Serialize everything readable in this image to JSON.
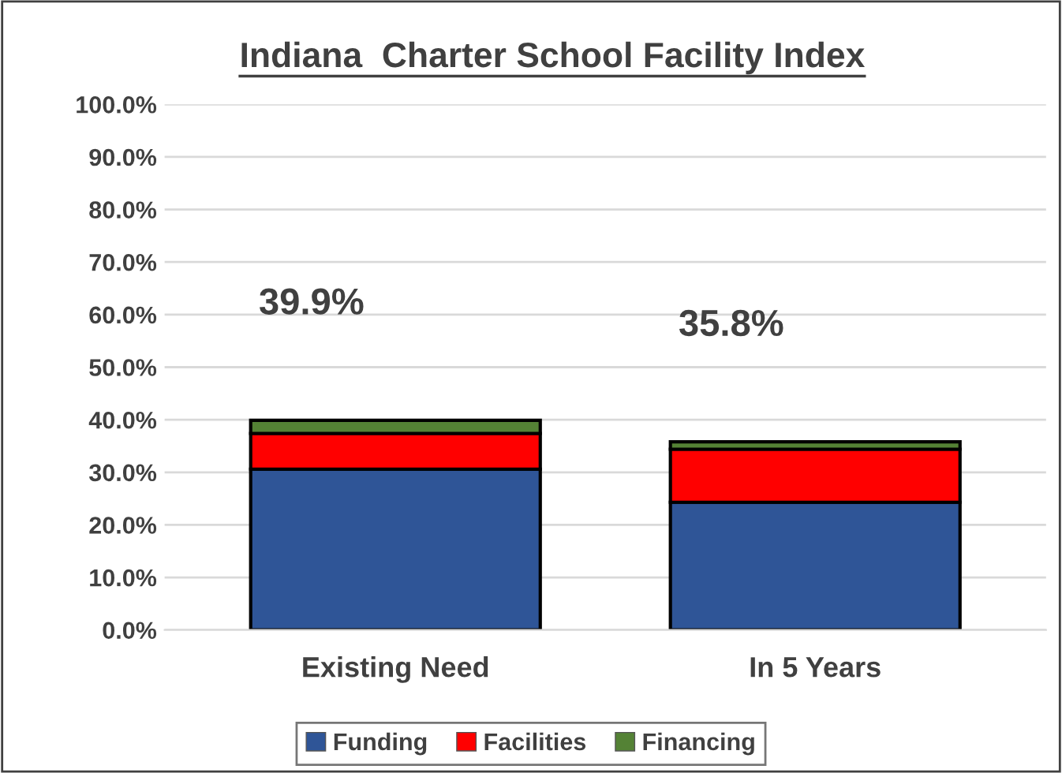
{
  "chart_data": {
    "type": "bar",
    "title": "Indiana  Charter School Facility Index",
    "categories": [
      "Existing Need",
      "In 5 Years"
    ],
    "stacked": true,
    "series": [
      {
        "name": "Funding",
        "color": "#2f5597",
        "values": [
          30.6,
          24.3
        ]
      },
      {
        "name": "Facilities",
        "color": "#ff0000",
        "values": [
          6.8,
          10.1
        ]
      },
      {
        "name": "Financing",
        "color": "#548235",
        "values": [
          2.5,
          1.4
        ]
      }
    ],
    "totals": [
      "39.9%",
      "35.8%"
    ],
    "ylim": [
      0,
      100
    ],
    "yticks": [
      {
        "value": 0,
        "label": "0.0%"
      },
      {
        "value": 10,
        "label": "10.0%"
      },
      {
        "value": 20,
        "label": "20.0%"
      },
      {
        "value": 30,
        "label": "30.0%"
      },
      {
        "value": 40,
        "label": "40.0%"
      },
      {
        "value": 50,
        "label": "50.0%"
      },
      {
        "value": 60,
        "label": "60.0%"
      },
      {
        "value": 70,
        "label": "70.0%"
      },
      {
        "value": 80,
        "label": "80.0%"
      },
      {
        "value": 90,
        "label": "90.0%"
      },
      {
        "value": 100,
        "label": "100.0%"
      }
    ],
    "grid": "y",
    "legend": "bottom"
  }
}
